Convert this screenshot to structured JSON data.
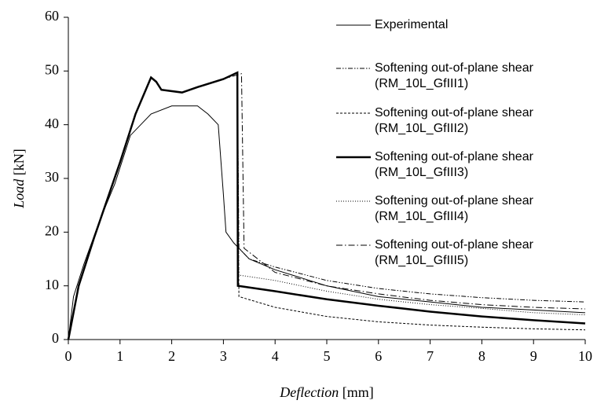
{
  "chart_data": {
    "type": "line",
    "xlabel": [
      "Deflection",
      "[mm]"
    ],
    "ylabel": [
      "Load",
      "[kN]"
    ],
    "xlim": [
      0,
      10
    ],
    "xticks": [
      0,
      1,
      2,
      3,
      4,
      5,
      6,
      7,
      8,
      9,
      10
    ],
    "ylim": [
      0,
      60
    ],
    "yticks": [
      0,
      10,
      20,
      30,
      40,
      50,
      60
    ],
    "series": [
      {
        "name": [
          "Experimental"
        ],
        "color": "#000000",
        "width": 1,
        "dash": "none",
        "x": [
          0,
          0.1,
          0.3,
          0.6,
          0.9,
          1.1,
          1.2,
          1.4,
          1.6,
          2,
          2.5,
          2.7,
          2.9,
          3.0,
          3.05,
          3.2,
          3.3,
          3.5,
          4,
          5,
          6,
          7,
          8,
          9,
          10
        ],
        "values": [
          0,
          8,
          14,
          22,
          29,
          35,
          38,
          40,
          42,
          43.5,
          43.5,
          42,
          40,
          27,
          20,
          18,
          17,
          15,
          13,
          10,
          8,
          7,
          6,
          5.5,
          5
        ]
      },
      {
        "name": [
          "Softening out-of-plane shear",
          "(RM_10L_GfIII1)"
        ],
        "color": "#000000",
        "width": 1,
        "dash": "6,2,1.5,2,1.5,2",
        "x": [
          0,
          0.2,
          0.5,
          1,
          1.3,
          1.6,
          1.7,
          1.8,
          2.2,
          2.5,
          3,
          3.27,
          3.3,
          3.5,
          4,
          5,
          6,
          7,
          8,
          9,
          10
        ],
        "values": [
          0,
          10,
          19,
          33,
          42,
          48.8,
          48,
          46.5,
          46,
          47,
          48.5,
          49.7,
          17,
          15,
          13.5,
          11,
          9.5,
          8.5,
          7.8,
          7.3,
          7
        ]
      },
      {
        "name": [
          "Softening out-of-plane shear",
          "(RM_10L_GfIII2)"
        ],
        "color": "#000000",
        "width": 1,
        "dash": "3,2",
        "x": [
          0,
          0.2,
          0.5,
          1,
          1.3,
          1.6,
          1.7,
          1.8,
          2.2,
          2.5,
          3,
          3.27,
          3.3,
          4,
          5,
          6,
          7,
          8,
          9,
          10
        ],
        "values": [
          0,
          10,
          19,
          33,
          42,
          48.8,
          48,
          46.5,
          46,
          47,
          48.5,
          49.7,
          8,
          6,
          4.3,
          3.3,
          2.7,
          2.3,
          2,
          1.8
        ]
      },
      {
        "name": [
          "Softening out-of-plane shear",
          "(RM_10L_GfIII3)"
        ],
        "color": "#000000",
        "width": 2.5,
        "dash": "none",
        "x": [
          0,
          0.2,
          0.5,
          1,
          1.3,
          1.6,
          1.7,
          1.8,
          2.2,
          2.5,
          3,
          3.27,
          3.28,
          4,
          5,
          6,
          7,
          8,
          9,
          10
        ],
        "values": [
          0,
          10,
          19,
          33,
          42,
          48.8,
          48,
          46.5,
          46,
          47,
          48.5,
          49.7,
          10,
          9,
          7.5,
          6.3,
          5.2,
          4.3,
          3.6,
          3
        ]
      },
      {
        "name": [
          "Softening out-of-plane shear",
          "(RM_10L_GfIII4)"
        ],
        "color": "#000000",
        "width": 1,
        "dash": "1,2",
        "x": [
          0,
          0.2,
          0.5,
          1,
          1.3,
          1.6,
          1.7,
          1.8,
          2.2,
          2.5,
          3,
          3.27,
          3.3,
          4,
          5,
          6,
          7,
          8,
          9,
          10
        ],
        "values": [
          0,
          10,
          19,
          33,
          42,
          48.8,
          48,
          46.5,
          46,
          47,
          48.5,
          49.7,
          12,
          11,
          9,
          7.5,
          6.5,
          5.8,
          5,
          4.6
        ]
      },
      {
        "name": [
          "Softening out-of-plane shear",
          "(RM_10L_GfIII5)"
        ],
        "color": "#000000",
        "width": 1,
        "dash": "8,3,1.5,3",
        "x": [
          0,
          0.2,
          0.5,
          1,
          1.3,
          1.6,
          1.7,
          1.8,
          2.2,
          2.5,
          3,
          3.35,
          3.4,
          4,
          5,
          6,
          7,
          8,
          9,
          10
        ],
        "values": [
          0,
          10,
          19,
          33,
          42,
          48.8,
          48,
          46.5,
          46,
          47,
          48.5,
          49.5,
          17,
          12.5,
          10,
          8.5,
          7.3,
          6.5,
          6,
          5.7
        ]
      }
    ]
  }
}
